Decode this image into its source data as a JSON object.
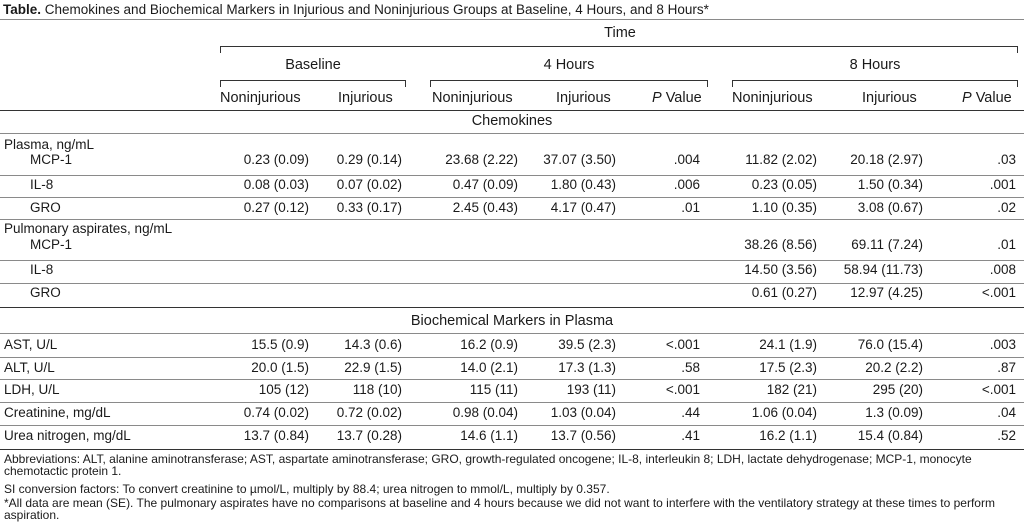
{
  "title": {
    "bold": "Table.",
    "text": " Chemokines and Biochemical Markers in Injurious and Noninjurious Groups at Baseline, 4 Hours, and 8 Hours*"
  },
  "header": {
    "time": "Time",
    "baseline": "Baseline",
    "h4": "4 Hours",
    "h8": "8 Hours",
    "cols": [
      "Noninjurious",
      "Injurious",
      "Noninjurious",
      "Injurious",
      "P Value",
      "Noninjurious",
      "Injurious",
      "P Value"
    ]
  },
  "sections": {
    "chemokines": "Chemokines",
    "biochem": "Biochemical Markers in Plasma"
  },
  "plasma_group": "Plasma, ng/mL",
  "pulmonary_group": "Pulmonary aspirates, ng/mL",
  "plasma_rows": [
    {
      "label": "MCP-1",
      "v": [
        "0.23 (0.09)",
        "0.29 (0.14)",
        "23.68 (2.22)",
        "37.07 (3.50)",
        ".004",
        "11.82 (2.02)",
        "20.18 (2.97)",
        ".03"
      ]
    },
    {
      "label": "IL-8",
      "v": [
        "0.08 (0.03)",
        "0.07 (0.02)",
        "0.47 (0.09)",
        "1.80 (0.43)",
        ".006",
        "0.23 (0.05)",
        "1.50 (0.34)",
        ".001"
      ]
    },
    {
      "label": "GRO",
      "v": [
        "0.27 (0.12)",
        "0.33 (0.17)",
        "2.45 (0.43)",
        "4.17 (0.47)",
        ".01",
        "1.10 (0.35)",
        "3.08 (0.67)",
        ".02"
      ]
    }
  ],
  "pulmonary_rows": [
    {
      "label": "MCP-1",
      "v": [
        "",
        "",
        "",
        "",
        "",
        "38.26 (8.56)",
        "69.11 (7.24)",
        ".01"
      ]
    },
    {
      "label": "IL-8",
      "v": [
        "",
        "",
        "",
        "",
        "",
        "14.50 (3.56)",
        "58.94 (11.73)",
        ".008"
      ]
    },
    {
      "label": "GRO",
      "v": [
        "",
        "",
        "",
        "",
        "",
        "0.61 (0.27)",
        "12.97 (4.25)",
        "<.001"
      ]
    }
  ],
  "biochem_rows": [
    {
      "label": "AST, U/L",
      "v": [
        "15.5 (0.9)",
        "14.3 (0.6)",
        "16.2 (0.9)",
        "39.5 (2.3)",
        "<.001",
        "24.1 (1.9)",
        "76.0 (15.4)",
        ".003"
      ]
    },
    {
      "label": "ALT, U/L",
      "v": [
        "20.0 (1.5)",
        "22.9 (1.5)",
        "14.0 (2.1)",
        "17.3 (1.3)",
        ".58",
        "17.5 (2.3)",
        "20.2 (2.2)",
        ".87"
      ]
    },
    {
      "label": "LDH, U/L",
      "v": [
        "105 (12)",
        "118 (10)",
        "115 (11)",
        "193 (11)",
        "<.001",
        "182 (21)",
        "295 (20)",
        "<.001"
      ]
    },
    {
      "label": "Creatinine, mg/dL",
      "v": [
        "0.74 (0.02)",
        "0.72 (0.02)",
        "0.98 (0.04)",
        "1.03 (0.04)",
        ".44",
        "1.06 (0.04)",
        "1.3 (0.09)",
        ".04"
      ]
    },
    {
      "label": "Urea nitrogen, mg/dL",
      "v": [
        "13.7 (0.84)",
        "13.7 (0.28)",
        "14.6 (1.1)",
        "13.7 (0.56)",
        ".41",
        "16.2 (1.1)",
        "15.4 (0.84)",
        ".52"
      ]
    }
  ],
  "footnotes": {
    "abbrev": "Abbreviations: ALT, alanine aminotransferase; AST, aspartate aminotransferase; GRO, growth-regulated oncogene; IL-8, interleukin 8; LDH, lactate dehydrogenase; MCP-1, monocyte chemotactic protein 1.",
    "si": "SI conversion factors: To convert creatinine to µmol/L, multiply by 88.4; urea nitrogen to mmol/L, multiply by 0.357.",
    "star": "*All data are mean (SE). The pulmonary aspirates have no comparisons at baseline and 4 hours because we did not want to interfere with the ventilatory strategy at these times to perform aspiration."
  }
}
